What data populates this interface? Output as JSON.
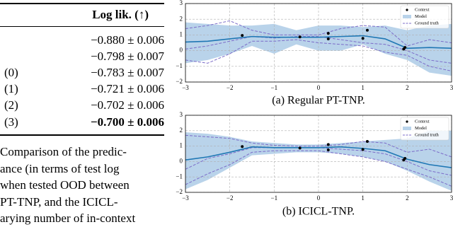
{
  "table": {
    "header": "Log lik. (↑)",
    "rows": [
      [
        "−0.880 ± 0.006"
      ],
      [
        "−0.798 ± 0.007"
      ],
      [
        "(0)",
        "−0.783 ± 0.007"
      ],
      [
        "(1)",
        "−0.721 ± 0.006"
      ],
      [
        "(2)",
        "−0.702 ± 0.006"
      ],
      [
        "(3)",
        "−0.700 ± 0.006"
      ]
    ]
  },
  "caption_lines": [
    "Comparison of the predic-",
    "ance (in terms of test log",
    "when tested OOD between",
    "PT-TNP, and the ICICL-",
    "arying number of in-context"
  ],
  "chart_data": [
    {
      "type": "line",
      "caption": "(a) Regular PT-TNP.",
      "xlim": [
        -3,
        3
      ],
      "ylim": [
        -2,
        3
      ],
      "xticks": [
        {
          "value": -3,
          "label": "−3"
        },
        {
          "value": -2,
          "label": "−2"
        },
        {
          "value": -1,
          "label": "−1"
        },
        0,
        1,
        2,
        3
      ],
      "yticks": [
        {
          "value": -2,
          "label": "−2"
        },
        {
          "value": -1,
          "label": "−1"
        },
        0,
        1,
        2,
        3
      ],
      "grid": true,
      "legend": "upper right",
      "x": [
        -3,
        -2.5,
        -2,
        -1.5,
        -1,
        -0.5,
        0,
        0.5,
        1,
        1.5,
        2,
        2.5,
        3
      ],
      "context": {
        "name": "Context",
        "color": "#000000",
        "x": [
          -1.72,
          -0.42,
          0.22,
          0.22,
          1.0,
          1.1,
          1.92,
          1.95
        ],
        "y": [
          0.97,
          0.87,
          1.1,
          0.75,
          0.78,
          1.3,
          0.1,
          0.2
        ]
      },
      "model": {
        "name": "Model",
        "color": "#1f77b4",
        "band_color": "#b9d3ea",
        "mean": [
          0.55,
          0.6,
          0.75,
          0.9,
          0.85,
          0.85,
          0.85,
          0.9,
          0.95,
          0.75,
          0.15,
          0.2,
          0.15
        ],
        "upper": [
          1.8,
          1.7,
          1.6,
          1.6,
          1.7,
          1.3,
          1.6,
          1.6,
          1.5,
          1.6,
          1.3,
          1.6,
          1.7
        ],
        "lower": [
          -0.8,
          -0.6,
          -0.2,
          0.3,
          -0.2,
          0.4,
          0.0,
          0.0,
          0.4,
          -0.2,
          -0.6,
          -1.4,
          -1.6
        ]
      },
      "ground_truth": {
        "name": "Ground truth",
        "color": "#7b6bc8",
        "lines": [
          [
            1.4,
            1.6,
            1.9,
            1.3,
            1.0,
            1.0,
            1.0,
            1.4,
            1.6,
            1.5,
            0.3,
            0.7,
            0.5
          ],
          [
            0.1,
            0.3,
            0.6,
            0.9,
            0.8,
            0.9,
            0.9,
            0.7,
            0.5,
            0.4,
            0.0,
            -0.6,
            -0.8
          ],
          [
            -0.6,
            -0.8,
            -0.2,
            0.6,
            0.6,
            0.7,
            0.5,
            0.4,
            0.3,
            -0.1,
            -0.3,
            -1.0,
            -1.3
          ]
        ]
      }
    },
    {
      "type": "line",
      "caption": "(b) ICICL-TNP.",
      "xlim": [
        -3,
        3
      ],
      "ylim": [
        -2,
        3
      ],
      "xticks": [
        {
          "value": -3,
          "label": "−3"
        },
        {
          "value": -2,
          "label": "−2"
        },
        {
          "value": -1,
          "label": "−1"
        },
        0,
        1,
        2,
        3
      ],
      "yticks": [
        {
          "value": -2,
          "label": "−2"
        },
        {
          "value": -1,
          "label": "−1"
        },
        0,
        1,
        2,
        3
      ],
      "grid": true,
      "legend": "upper right",
      "x": [
        -3,
        -2.5,
        -2,
        -1.5,
        -1,
        -0.5,
        0,
        0.5,
        1,
        1.5,
        2,
        2.5,
        3
      ],
      "context": {
        "name": "Context",
        "color": "#000000",
        "x": [
          -1.72,
          -0.42,
          0.22,
          0.22,
          1.0,
          1.1,
          1.92,
          1.95
        ],
        "y": [
          0.97,
          0.87,
          1.1,
          0.75,
          0.78,
          1.3,
          0.1,
          0.2
        ]
      },
      "model": {
        "name": "Model",
        "color": "#1f77b4",
        "band_color": "#b9d3ea",
        "mean": [
          0.1,
          0.3,
          0.6,
          0.95,
          0.9,
          0.9,
          0.9,
          0.95,
          0.85,
          0.7,
          0.15,
          -0.2,
          -0.4
        ],
        "upper": [
          1.9,
          1.8,
          1.6,
          1.3,
          1.2,
          1.1,
          1.1,
          1.2,
          1.3,
          1.4,
          1.5,
          2.0,
          2.0
        ],
        "lower": [
          -1.8,
          -1.2,
          -0.4,
          0.4,
          0.5,
          0.6,
          0.6,
          0.5,
          0.3,
          0.0,
          -0.6,
          -1.3,
          -1.9
        ]
      },
      "ground_truth": {
        "name": "Ground truth",
        "color": "#7b6bc8",
        "lines": [
          [
            1.7,
            1.6,
            1.5,
            1.2,
            1.05,
            1.0,
            1.0,
            1.1,
            1.3,
            1.2,
            0.6,
            0.8,
            0.3
          ],
          [
            -0.5,
            0.2,
            0.5,
            0.9,
            0.9,
            0.9,
            0.9,
            0.8,
            0.7,
            0.5,
            0.0,
            -0.6,
            -0.9
          ],
          [
            -1.5,
            -0.8,
            -0.2,
            0.6,
            0.7,
            0.7,
            0.7,
            0.5,
            0.3,
            0.0,
            -0.5,
            -1.0,
            -1.6
          ]
        ]
      }
    }
  ]
}
